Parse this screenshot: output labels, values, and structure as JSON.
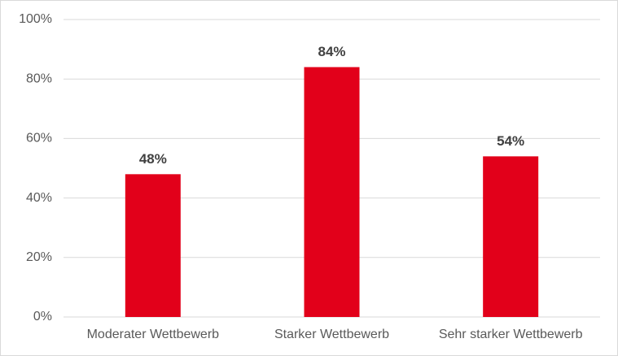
{
  "chart_data": {
    "type": "bar",
    "categories": [
      "Moderater Wettbewerb",
      "Starker Wettbewerb",
      "Sehr starker Wettbewerb"
    ],
    "values": [
      48,
      84,
      54
    ],
    "value_labels": [
      "48%",
      "84%",
      "54%"
    ],
    "color": "#e2001a",
    "ylim": [
      0,
      100
    ],
    "yticks": [
      {
        "value": 0,
        "label": "0%"
      },
      {
        "value": 20,
        "label": "20%"
      },
      {
        "value": 40,
        "label": "40%"
      },
      {
        "value": 60,
        "label": "60%"
      },
      {
        "value": 80,
        "label": "80%"
      },
      {
        "value": 100,
        "label": "100%"
      }
    ],
    "grid": true
  }
}
